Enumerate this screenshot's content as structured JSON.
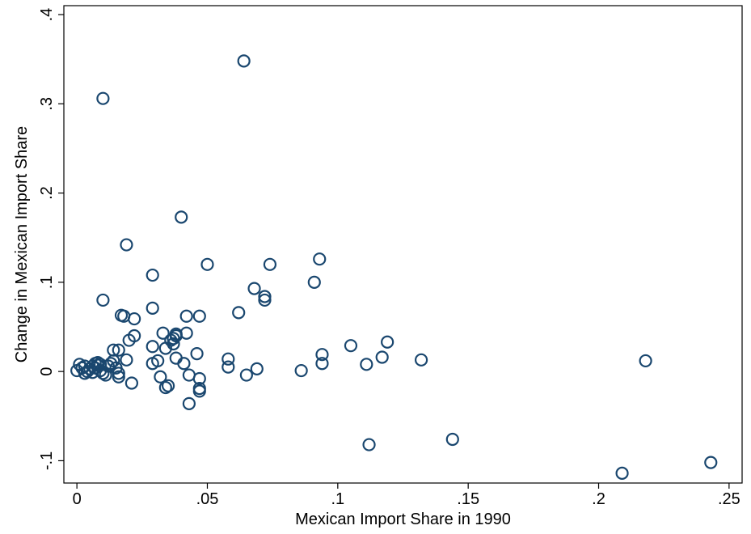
{
  "chart_data": {
    "type": "scatter",
    "title": "",
    "xlabel": "Mexican Import Share in 1990",
    "ylabel": "Change in Mexican Import Share",
    "xlim": [
      -0.005,
      0.255
    ],
    "ylim": [
      -0.125,
      0.41
    ],
    "x_ticks": [
      {
        "value": 0,
        "label": "0"
      },
      {
        "value": 0.05,
        "label": ".05"
      },
      {
        "value": 0.1,
        "label": ".1"
      },
      {
        "value": 0.15,
        "label": ".15"
      },
      {
        "value": 0.2,
        "label": ".2"
      },
      {
        "value": 0.25,
        "label": ".25"
      }
    ],
    "y_ticks": [
      {
        "value": -0.1,
        "label": "-.1"
      },
      {
        "value": 0,
        "label": "0"
      },
      {
        "value": 0.1,
        "label": ".1"
      },
      {
        "value": 0.2,
        "label": ".2"
      },
      {
        "value": 0.3,
        "label": ".3"
      },
      {
        "value": 0.4,
        "label": ".4"
      }
    ],
    "grid": false,
    "marker": "hollow-circle",
    "marker_color": "#1a476f",
    "points": [
      [
        0.064,
        0.348
      ],
      [
        0.01,
        0.306
      ],
      [
        0.04,
        0.173
      ],
      [
        0.019,
        0.142
      ],
      [
        0.029,
        0.108
      ],
      [
        0.05,
        0.12
      ],
      [
        0.074,
        0.12
      ],
      [
        0.093,
        0.126
      ],
      [
        0.01,
        0.08
      ],
      [
        0.068,
        0.093
      ],
      [
        0.091,
        0.1
      ],
      [
        0.072,
        0.084
      ],
      [
        0.072,
        0.08
      ],
      [
        0.062,
        0.066
      ],
      [
        0.029,
        0.071
      ],
      [
        0.017,
        0.063
      ],
      [
        0.018,
        0.062
      ],
      [
        0.022,
        0.059
      ],
      [
        0.042,
        0.062
      ],
      [
        0.047,
        0.062
      ],
      [
        0.033,
        0.043
      ],
      [
        0.042,
        0.043
      ],
      [
        0.038,
        0.042
      ],
      [
        0.038,
        0.04
      ],
      [
        0.037,
        0.037
      ],
      [
        0.036,
        0.035
      ],
      [
        0.037,
        0.031
      ],
      [
        0.022,
        0.04
      ],
      [
        0.02,
        0.035
      ],
      [
        0.029,
        0.028
      ],
      [
        0.034,
        0.026
      ],
      [
        0.014,
        0.024
      ],
      [
        0.016,
        0.024
      ],
      [
        0.014,
        0.012
      ],
      [
        0.015,
        0.004
      ],
      [
        0.016,
        -0.002
      ],
      [
        0.016,
        -0.006
      ],
      [
        0.019,
        0.013
      ],
      [
        0.021,
        -0.013
      ],
      [
        0.029,
        0.009
      ],
      [
        0.031,
        0.012
      ],
      [
        0.032,
        -0.006
      ],
      [
        0.034,
        -0.018
      ],
      [
        0.035,
        -0.016
      ],
      [
        0.038,
        0.015
      ],
      [
        0.041,
        0.009
      ],
      [
        0.043,
        -0.004
      ],
      [
        0.043,
        -0.036
      ],
      [
        0.046,
        0.02
      ],
      [
        0.047,
        -0.008
      ],
      [
        0.047,
        -0.019
      ],
      [
        0.047,
        -0.022
      ],
      [
        0.058,
        0.014
      ],
      [
        0.058,
        0.005
      ],
      [
        0.065,
        -0.004
      ],
      [
        0.069,
        0.003
      ],
      [
        0.086,
        0.001
      ],
      [
        0.094,
        0.019
      ],
      [
        0.094,
        0.009
      ],
      [
        0.105,
        0.029
      ],
      [
        0.111,
        0.008
      ],
      [
        0.117,
        0.016
      ],
      [
        0.119,
        0.033
      ],
      [
        0.132,
        0.013
      ],
      [
        0.112,
        -0.082
      ],
      [
        0.144,
        -0.076
      ],
      [
        0.218,
        0.012
      ],
      [
        0.209,
        -0.114
      ],
      [
        0.243,
        -0.102
      ],
      [
        0.0,
        0.001
      ],
      [
        0.001,
        0.008
      ],
      [
        0.002,
        0.004
      ],
      [
        0.003,
        0.006
      ],
      [
        0.003,
        -0.002
      ],
      [
        0.004,
        0.0
      ],
      [
        0.005,
        0.003
      ],
      [
        0.006,
        -0.001
      ],
      [
        0.006,
        0.006
      ],
      [
        0.007,
        0.009
      ],
      [
        0.007,
        0.004
      ],
      [
        0.008,
        0.007
      ],
      [
        0.008,
        0.01
      ],
      [
        0.009,
        0.008
      ],
      [
        0.009,
        0.001
      ],
      [
        0.01,
        -0.002
      ],
      [
        0.011,
        -0.004
      ],
      [
        0.012,
        0.006
      ],
      [
        0.013,
        0.009
      ]
    ]
  }
}
